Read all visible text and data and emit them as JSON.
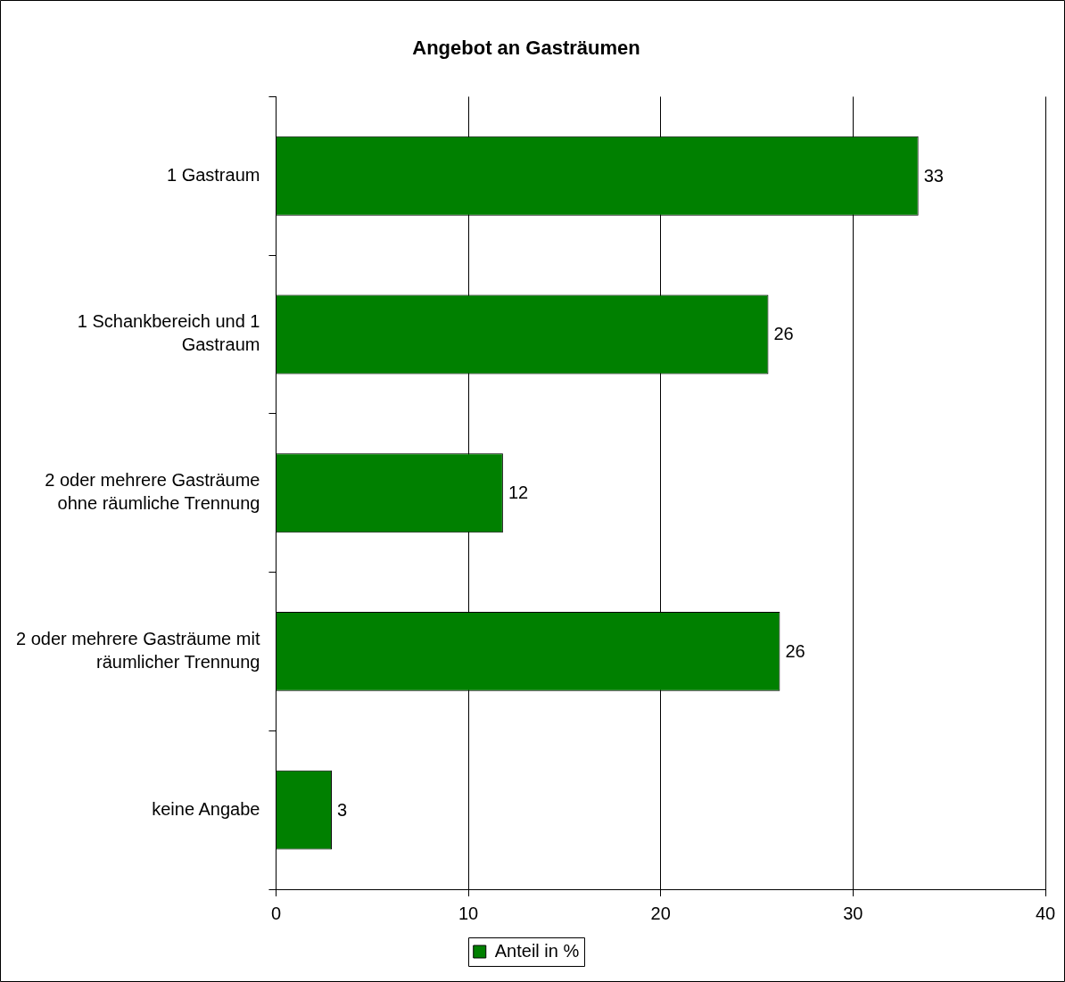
{
  "chart_data": {
    "type": "bar",
    "orientation": "horizontal",
    "title": "Angebot an Gasträumen",
    "categories": [
      "1 Gastraum",
      "1 Schankbereich und 1 Gastraum",
      "2 oder mehrere Gasträume ohne räumliche Trennung",
      "2 oder mehrere Gasträume mit räumlicher Trennung",
      "keine Angabe"
    ],
    "series": [
      {
        "name": "Anteil in %",
        "color": "#008000",
        "values": [
          33.4,
          25.6,
          11.8,
          26.2,
          2.9
        ],
        "value_labels": [
          "33",
          "26",
          "12",
          "26",
          "3"
        ]
      }
    ],
    "xlim": [
      0,
      40
    ],
    "xticks": [
      0,
      10,
      20,
      30,
      40
    ],
    "grid": "x",
    "legend": "bottom"
  }
}
